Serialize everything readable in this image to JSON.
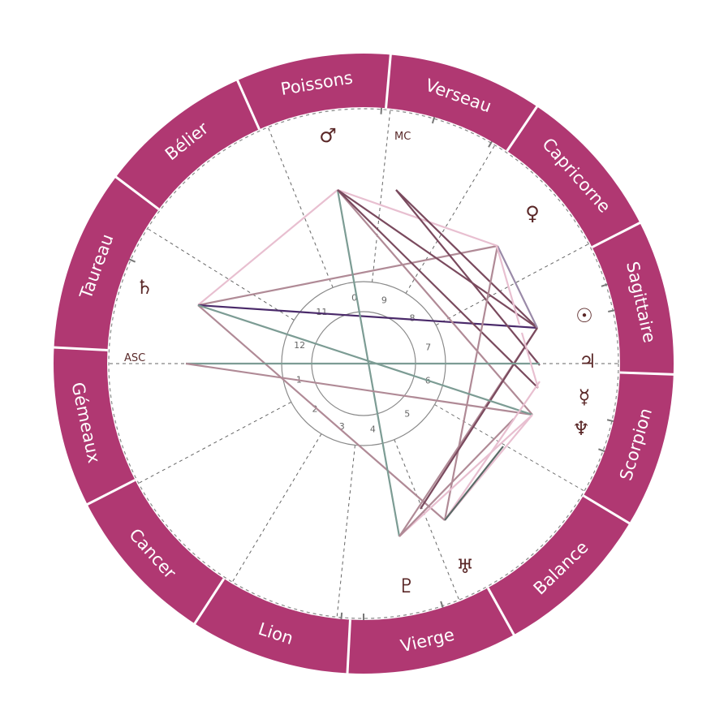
{
  "zodiac_signs": [
    "Bélier",
    "Poissons",
    "Verseau",
    "Capricorne",
    "Sagittaire",
    "Scorpion",
    "Balance",
    "Vierge",
    "Lion",
    "Cancer",
    "Gémeaux",
    "Taureau"
  ],
  "angles": {
    "asc": "ASC",
    "mc": "MC"
  },
  "house_numbers": [
    "1",
    "2",
    "3",
    "4",
    "5",
    "6",
    "7",
    "8",
    "9",
    "0",
    "11",
    "12"
  ],
  "planets": [
    {
      "id": "mars",
      "symbol": "♂",
      "name": "mars-glyph"
    },
    {
      "id": "venus",
      "symbol": "♀",
      "name": "venus-glyph"
    },
    {
      "id": "sun",
      "symbol": "☉",
      "name": "sun-glyph"
    },
    {
      "id": "jupiter",
      "symbol": "♃",
      "name": "jupiter-glyph"
    },
    {
      "id": "mercury",
      "symbol": "☿",
      "name": "mercury-glyph"
    },
    {
      "id": "neptune",
      "symbol": "♆",
      "name": "neptune-glyph"
    },
    {
      "id": "uranus",
      "symbol": "♅",
      "name": "uranus-glyph"
    },
    {
      "id": "pluto",
      "symbol": "♇",
      "name": "pluto-glyph"
    },
    {
      "id": "saturn",
      "symbol": "♄",
      "name": "saturn-glyph"
    }
  ],
  "colors": {
    "ring": "#b03872",
    "ring_divider": "#ffffff",
    "glyph": "#5a2727",
    "aspect_teal": "#7c9c94",
    "aspect_mauve": "#b08a96",
    "aspect_pink": "#e8bfd0",
    "aspect_plum": "#7a4a5e",
    "aspect_purple": "#4a2a6a"
  }
}
